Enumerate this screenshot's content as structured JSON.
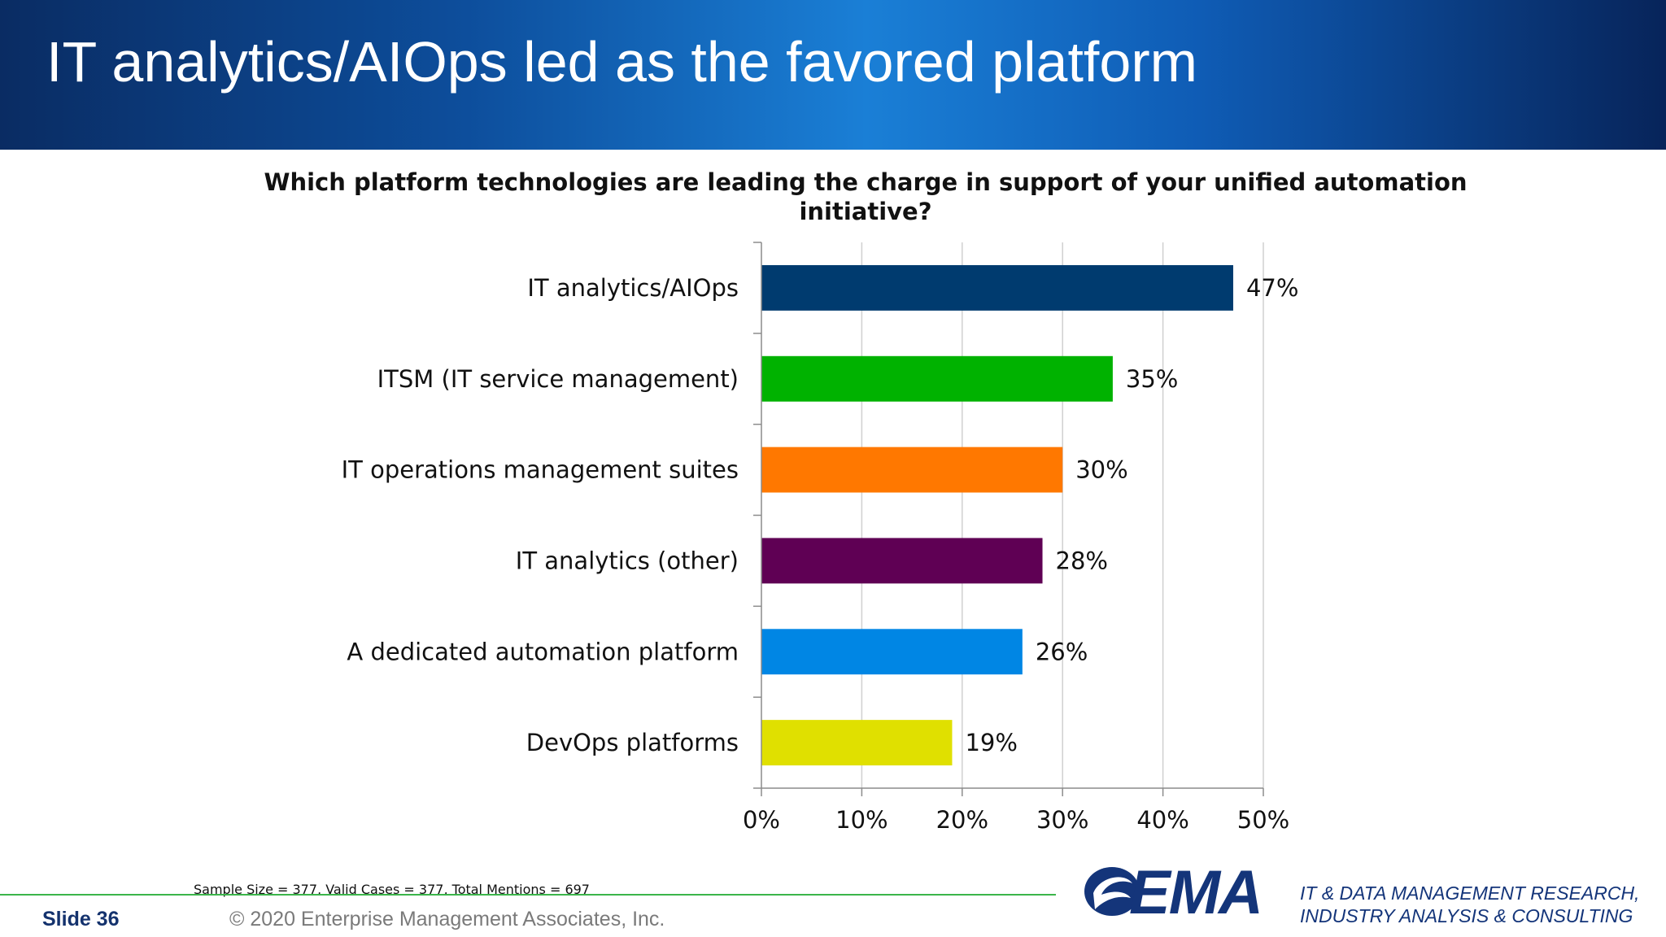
{
  "header": {
    "title": "IT analytics/AIOps led as the favored platform"
  },
  "chart_data": {
    "type": "bar",
    "orientation": "horizontal",
    "title": "Which platform technologies are leading the charge in support of your unified automation initiative?",
    "categories": [
      "IT analytics/AIOps",
      "ITSM (IT service management)",
      "IT operations management suites",
      "IT analytics (other)",
      "A dedicated automation platform",
      "DevOps platforms"
    ],
    "values": [
      47,
      35,
      30,
      28,
      26,
      19
    ],
    "data_labels": [
      "47%",
      "35%",
      "30%",
      "28%",
      "26%",
      "19%"
    ],
    "bar_colors": [
      "#003b6f",
      "#00b200",
      "#ff7800",
      "#5f0054",
      "#0086e4",
      "#e0e000"
    ],
    "xlim": [
      0,
      50
    ],
    "x_ticks": [
      0,
      10,
      20,
      30,
      40,
      50
    ],
    "x_tick_labels": [
      "0%",
      "10%",
      "20%",
      "30%",
      "40%",
      "50%"
    ],
    "grid": true,
    "legend": "none"
  },
  "footer": {
    "note": "Sample Size = 377, Valid Cases = 377, Total Mentions = 697",
    "slide_label": "Slide  36",
    "copyright": "© 2020 Enterprise Management Associates, Inc.",
    "logo_text": "EMA",
    "tagline_line1": "IT & DATA MANAGEMENT RESEARCH,",
    "tagline_line2": "INDUSTRY ANALYSIS & CONSULTING",
    "brand_color": "#14357a",
    "rule_color": "#3bb54a"
  }
}
